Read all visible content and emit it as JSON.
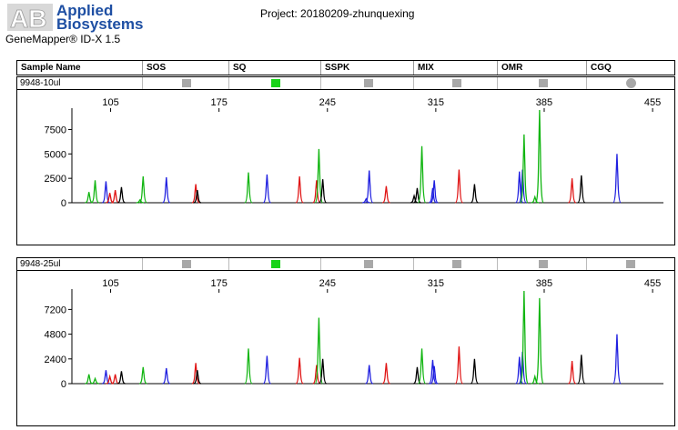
{
  "logo": {
    "line1": "Applied",
    "line2": "Biosystems"
  },
  "product": "GeneMapper® ID-X  1.5",
  "project": "Project: 20180209-zhunquexing",
  "columns": [
    "Sample Name",
    "SOS",
    "SQ",
    "SSPK",
    "MIX",
    "OMR",
    "CGQ"
  ],
  "colors": {
    "blue": "#1f1fe0",
    "green": "#10b510",
    "black": "#000000",
    "red": "#e01414",
    "flag_green": "#19d319",
    "flag_gray": "#a8a8a8"
  },
  "panels": [
    {
      "sample": "9948-10ul",
      "flags": [
        "gray-square",
        "green-square",
        "gray-square",
        "gray-square",
        "gray-square",
        "gray-circle"
      ],
      "chart_data": {
        "type": "line",
        "x_ticks": [
          105,
          175,
          245,
          315,
          385,
          455
        ],
        "y_ticks": [
          "0",
          "2500",
          "5000",
          "7500"
        ],
        "ylim": [
          0,
          9500
        ],
        "xlim": [
          80,
          462
        ],
        "peaks": [
          {
            "x": 91,
            "h": 1100,
            "c": "green"
          },
          {
            "x": 95,
            "h": 2300,
            "c": "green"
          },
          {
            "x": 102,
            "h": 2200,
            "c": "blue"
          },
          {
            "x": 104.5,
            "h": 1000,
            "c": "red"
          },
          {
            "x": 108,
            "h": 1300,
            "c": "red"
          },
          {
            "x": 112,
            "h": 1600,
            "c": "black"
          },
          {
            "x": 124,
            "h": 300,
            "c": "green"
          },
          {
            "x": 126,
            "h": 2700,
            "c": "green"
          },
          {
            "x": 141,
            "h": 2600,
            "c": "blue"
          },
          {
            "x": 160,
            "h": 1900,
            "c": "red"
          },
          {
            "x": 161,
            "h": 1300,
            "c": "black"
          },
          {
            "x": 194,
            "h": 3100,
            "c": "green"
          },
          {
            "x": 206,
            "h": 2900,
            "c": "blue"
          },
          {
            "x": 227,
            "h": 2700,
            "c": "red"
          },
          {
            "x": 238,
            "h": 2300,
            "c": "red"
          },
          {
            "x": 239.5,
            "h": 5500,
            "c": "green"
          },
          {
            "x": 242,
            "h": 2400,
            "c": "black"
          },
          {
            "x": 270,
            "h": 400,
            "c": "blue"
          },
          {
            "x": 272,
            "h": 3300,
            "c": "blue"
          },
          {
            "x": 283,
            "h": 1700,
            "c": "red"
          },
          {
            "x": 301,
            "h": 700,
            "c": "black"
          },
          {
            "x": 303,
            "h": 1500,
            "c": "black"
          },
          {
            "x": 306,
            "h": 5800,
            "c": "green"
          },
          {
            "x": 313,
            "h": 1500,
            "c": "blue"
          },
          {
            "x": 314,
            "h": 2300,
            "c": "blue"
          },
          {
            "x": 330,
            "h": 3400,
            "c": "red"
          },
          {
            "x": 340,
            "h": 1900,
            "c": "black"
          },
          {
            "x": 369,
            "h": 3200,
            "c": "blue"
          },
          {
            "x": 371,
            "h": 3400,
            "c": "blue"
          },
          {
            "x": 372,
            "h": 7000,
            "c": "green"
          },
          {
            "x": 379,
            "h": 600,
            "c": "green"
          },
          {
            "x": 382,
            "h": 9500,
            "c": "green"
          },
          {
            "x": 403,
            "h": 2500,
            "c": "red"
          },
          {
            "x": 409,
            "h": 2800,
            "c": "black"
          },
          {
            "x": 432,
            "h": 5000,
            "c": "blue"
          }
        ]
      }
    },
    {
      "sample": "9948-25ul",
      "flags": [
        "gray-square",
        "green-square",
        "gray-square",
        "gray-square",
        "gray-square",
        "gray-square"
      ],
      "chart_data": {
        "type": "line",
        "x_ticks": [
          105,
          175,
          245,
          315,
          385,
          455
        ],
        "y_ticks": [
          "0",
          "2400",
          "4800",
          "7200"
        ],
        "ylim": [
          0,
          9000
        ],
        "xlim": [
          80,
          462
        ],
        "peaks": [
          {
            "x": 91,
            "h": 900,
            "c": "green"
          },
          {
            "x": 95,
            "h": 500,
            "c": "green"
          },
          {
            "x": 102,
            "h": 1300,
            "c": "blue"
          },
          {
            "x": 104.5,
            "h": 700,
            "c": "red"
          },
          {
            "x": 108,
            "h": 900,
            "c": "red"
          },
          {
            "x": 112,
            "h": 1200,
            "c": "black"
          },
          {
            "x": 126,
            "h": 1600,
            "c": "green"
          },
          {
            "x": 141,
            "h": 1500,
            "c": "blue"
          },
          {
            "x": 160,
            "h": 2000,
            "c": "red"
          },
          {
            "x": 161,
            "h": 1300,
            "c": "black"
          },
          {
            "x": 194,
            "h": 3400,
            "c": "green"
          },
          {
            "x": 206,
            "h": 2700,
            "c": "blue"
          },
          {
            "x": 227,
            "h": 2500,
            "c": "red"
          },
          {
            "x": 238,
            "h": 1800,
            "c": "red"
          },
          {
            "x": 239.5,
            "h": 6400,
            "c": "green"
          },
          {
            "x": 242,
            "h": 2400,
            "c": "black"
          },
          {
            "x": 272,
            "h": 1800,
            "c": "blue"
          },
          {
            "x": 283,
            "h": 2000,
            "c": "red"
          },
          {
            "x": 303,
            "h": 1600,
            "c": "black"
          },
          {
            "x": 306,
            "h": 3400,
            "c": "green"
          },
          {
            "x": 313,
            "h": 2300,
            "c": "blue"
          },
          {
            "x": 314,
            "h": 1700,
            "c": "blue"
          },
          {
            "x": 330,
            "h": 3600,
            "c": "red"
          },
          {
            "x": 340,
            "h": 2400,
            "c": "black"
          },
          {
            "x": 369,
            "h": 2600,
            "c": "blue"
          },
          {
            "x": 371,
            "h": 3100,
            "c": "blue"
          },
          {
            "x": 372,
            "h": 9000,
            "c": "green"
          },
          {
            "x": 379,
            "h": 700,
            "c": "green"
          },
          {
            "x": 382,
            "h": 8300,
            "c": "green"
          },
          {
            "x": 403,
            "h": 2200,
            "c": "red"
          },
          {
            "x": 409,
            "h": 2800,
            "c": "black"
          },
          {
            "x": 432,
            "h": 4800,
            "c": "blue"
          }
        ]
      }
    }
  ]
}
